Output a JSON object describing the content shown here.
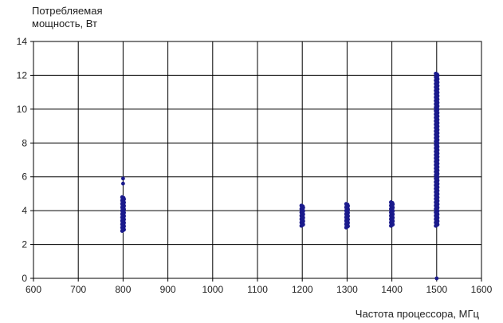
{
  "chart_data": {
    "type": "scatter",
    "title": "",
    "ylabel_lines": [
      "Потребляемая",
      "мощность, Вт"
    ],
    "xlabel": "Частота процессора, МГц",
    "xlim": [
      600,
      1600
    ],
    "ylim": [
      0,
      14
    ],
    "x_ticks": [
      600,
      700,
      800,
      900,
      1000,
      1100,
      1200,
      1300,
      1400,
      1500,
      1600
    ],
    "y_ticks": [
      0,
      2,
      4,
      6,
      8,
      10,
      12,
      14
    ],
    "grid": true,
    "legend": "none",
    "colors": {
      "marker": "#1a1a8c",
      "grid": "#000000",
      "axis": "#000000"
    },
    "series": [
      {
        "clusters": [
          {
            "x": 800,
            "y_min": 2.8,
            "y_max": 4.8,
            "extra_points": [
              5.6,
              5.9
            ]
          },
          {
            "x": 1200,
            "y_min": 3.1,
            "y_max": 4.3,
            "extra_points": []
          },
          {
            "x": 1300,
            "y_min": 3.0,
            "y_max": 4.4,
            "extra_points": []
          },
          {
            "x": 1400,
            "y_min": 3.1,
            "y_max": 4.5,
            "extra_points": []
          },
          {
            "x": 1500,
            "y_min": 3.1,
            "y_max": 12.1,
            "extra_points": [
              0
            ]
          }
        ]
      }
    ]
  }
}
